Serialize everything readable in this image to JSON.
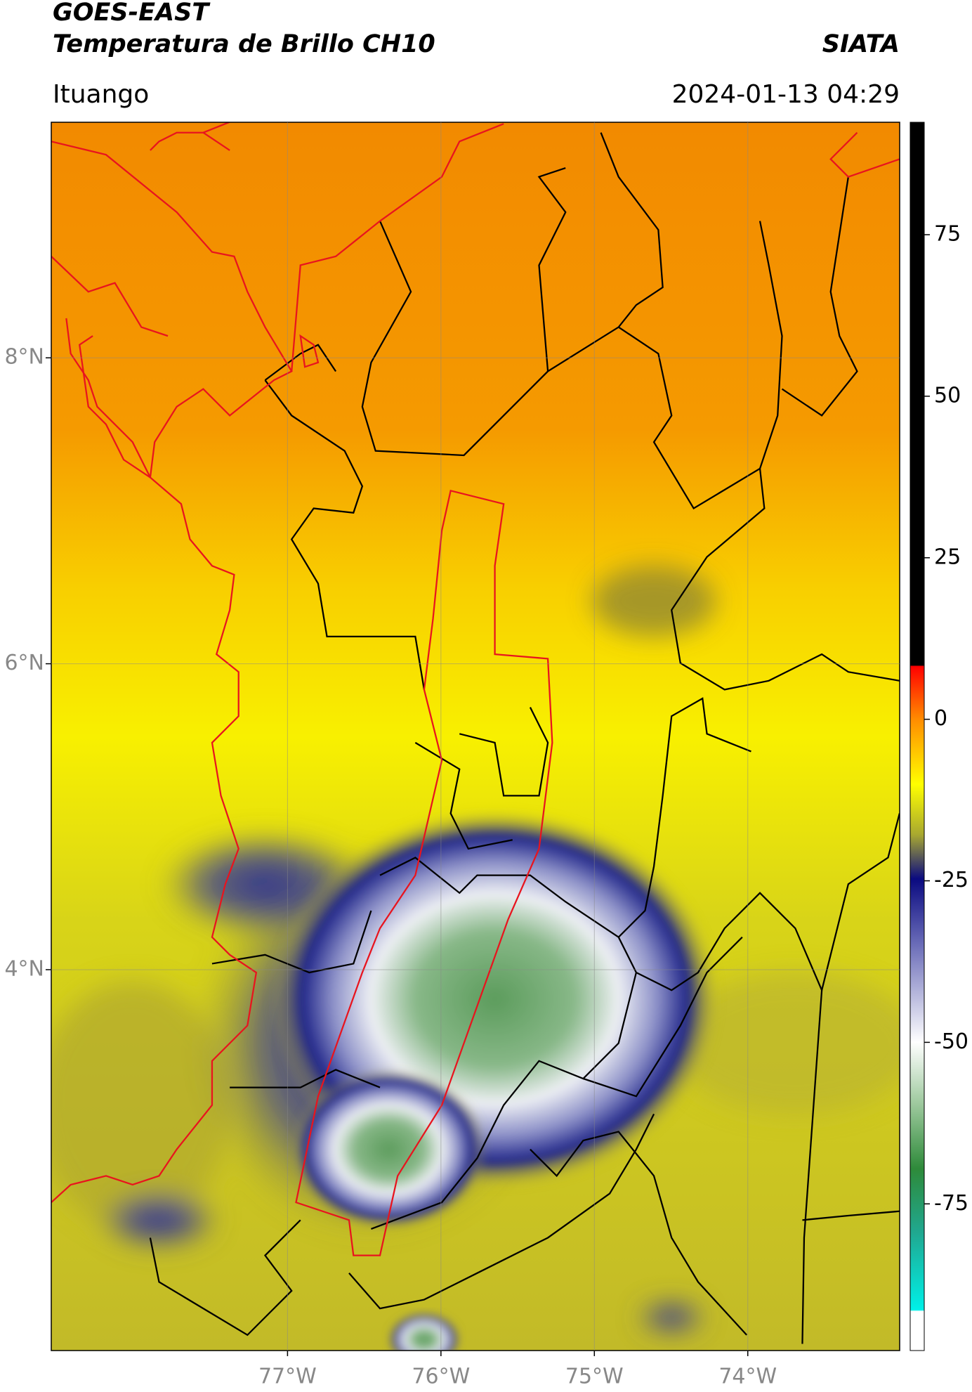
{
  "header": {
    "title": "GOES-EAST",
    "subtitle": "Temperatura de Brillo CH10",
    "source": "SIATA",
    "location": "Ituango",
    "datetime": "2024-01-13 04:29"
  },
  "map": {
    "xlim": [
      -78.54,
      -73.01
    ],
    "ylim": [
      1.51,
      9.54
    ],
    "xticks": [
      {
        "value": -77,
        "label": "77°W"
      },
      {
        "value": -76,
        "label": "76°W"
      },
      {
        "value": -75,
        "label": "75°W"
      },
      {
        "value": -74,
        "label": "74°W"
      }
    ],
    "yticks": [
      {
        "value": 4,
        "label": "4°N"
      },
      {
        "value": 6,
        "label": "6°N"
      },
      {
        "value": 8,
        "label": "8°N"
      }
    ],
    "grid": true
  },
  "colorbar": {
    "lim": [
      -97.7,
      92.4
    ],
    "ticks": [
      -75,
      -50,
      -25,
      0,
      25,
      50,
      75
    ]
  }
}
